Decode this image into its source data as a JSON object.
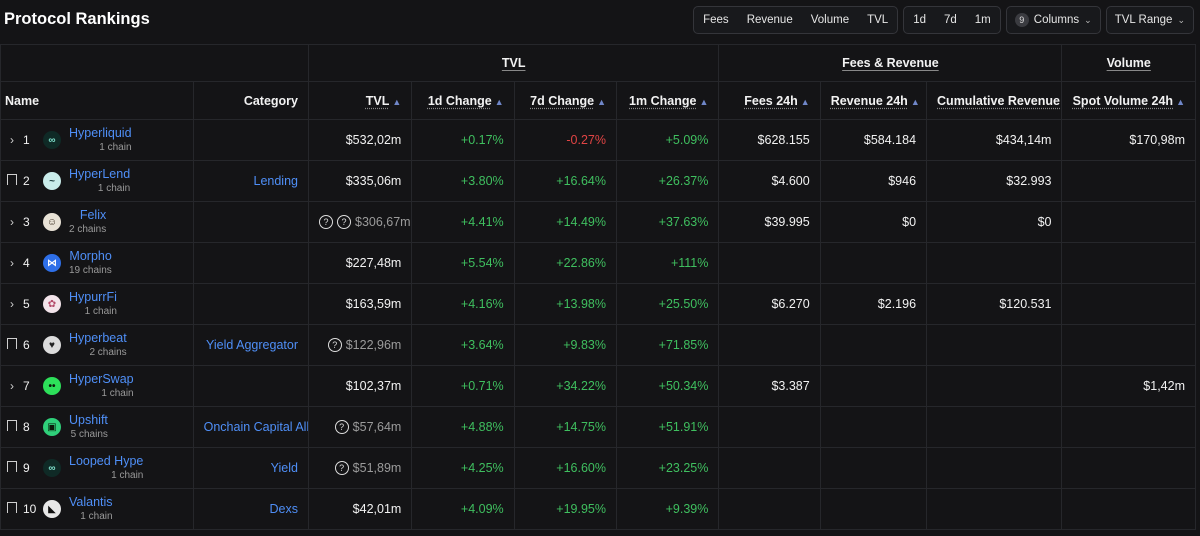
{
  "title": "Protocol Rankings",
  "metric_filters": [
    "Fees",
    "Revenue",
    "Volume",
    "TVL"
  ],
  "period_filters": [
    "1d",
    "7d",
    "1m"
  ],
  "columns_button": {
    "count": "9",
    "label": "Columns"
  },
  "range_button": {
    "label": "TVL Range"
  },
  "groups": {
    "tvl": "TVL",
    "fees": "Fees & Revenue",
    "volume": "Volume"
  },
  "headers": {
    "name": "Name",
    "category": "Category",
    "tvl": "TVL",
    "change_1d": "1d Change",
    "change_7d": "7d Change",
    "change_1m": "1m Change",
    "fees_24h": "Fees 24h",
    "revenue_24h": "Revenue 24h",
    "cum_revenue": "Cumulative Revenue",
    "spot_volume": "Spot Volume 24h"
  },
  "rows": [
    {
      "rank": "1",
      "control": "expand",
      "name": "Hyperliquid",
      "chains": "1 chain",
      "category": "",
      "tvl_icons": 0,
      "tvl": "$532,02m",
      "d1": "+0.17%",
      "d1_neg": false,
      "d7": "-0.27%",
      "d7_neg": true,
      "m1": "+5.09%",
      "fees": "$628.155",
      "revenue": "$584.184",
      "cum": "$434,14m",
      "volume": "$170,98m",
      "logo_bg": "#0f2a26",
      "logo_fg": "#7fe0cc",
      "logo_glyph": "∞"
    },
    {
      "rank": "2",
      "control": "bookmark",
      "name": "HyperLend",
      "chains": "1 chain",
      "category": "Lending",
      "tvl_icons": 0,
      "tvl": "$335,06m",
      "d1": "+3.80%",
      "d1_neg": false,
      "d7": "+16.64%",
      "d7_neg": false,
      "m1": "+26.37%",
      "fees": "$4.600",
      "revenue": "$946",
      "cum": "$32.993",
      "volume": "",
      "logo_bg": "#c9ecea",
      "logo_fg": "#1a3a3a",
      "logo_glyph": "~"
    },
    {
      "rank": "3",
      "control": "expand",
      "name": "Felix",
      "chains": "2 chains",
      "category": "",
      "tvl_icons": 2,
      "tvl": "$306,67m",
      "d1": "+4.41%",
      "d1_neg": false,
      "d7": "+14.49%",
      "d7_neg": false,
      "m1": "+37.63%",
      "fees": "$39.995",
      "revenue": "$0",
      "cum": "$0",
      "volume": "",
      "logo_bg": "#e8e2d6",
      "logo_fg": "#3a2e20",
      "logo_glyph": "☺"
    },
    {
      "rank": "4",
      "control": "expand",
      "name": "Morpho",
      "chains": "19 chains",
      "category": "",
      "tvl_icons": 0,
      "tvl": "$227,48m",
      "d1": "+5.54%",
      "d1_neg": false,
      "d7": "+22.86%",
      "d7_neg": false,
      "m1": "+111%",
      "fees": "",
      "revenue": "",
      "cum": "",
      "volume": "",
      "logo_bg": "#2e6fe8",
      "logo_fg": "#ffffff",
      "logo_glyph": "⋈"
    },
    {
      "rank": "5",
      "control": "expand",
      "name": "HypurrFi",
      "chains": "1 chain",
      "category": "",
      "tvl_icons": 0,
      "tvl": "$163,59m",
      "d1": "+4.16%",
      "d1_neg": false,
      "d7": "+13.98%",
      "d7_neg": false,
      "m1": "+25.50%",
      "fees": "$6.270",
      "revenue": "$2.196",
      "cum": "$120.531",
      "volume": "",
      "logo_bg": "#f3e4ea",
      "logo_fg": "#b44a6a",
      "logo_glyph": "✿"
    },
    {
      "rank": "6",
      "control": "bookmark",
      "name": "Hyperbeat",
      "chains": "2 chains",
      "category": "Yield Aggregator",
      "tvl_icons": 1,
      "tvl": "$122,96m",
      "d1": "+3.64%",
      "d1_neg": false,
      "d7": "+9.83%",
      "d7_neg": false,
      "m1": "+71.85%",
      "fees": "",
      "revenue": "",
      "cum": "",
      "volume": "",
      "logo_bg": "#dcdcdc",
      "logo_fg": "#222222",
      "logo_glyph": "♥"
    },
    {
      "rank": "7",
      "control": "expand",
      "name": "HyperSwap",
      "chains": "1 chain",
      "category": "",
      "tvl_icons": 0,
      "tvl": "$102,37m",
      "d1": "+0.71%",
      "d1_neg": false,
      "d7": "+34.22%",
      "d7_neg": false,
      "m1": "+50.34%",
      "fees": "$3.387",
      "revenue": "",
      "cum": "",
      "volume": "$1,42m",
      "logo_bg": "#2de05a",
      "logo_fg": "#0a1a0a",
      "logo_glyph": "••"
    },
    {
      "rank": "8",
      "control": "bookmark",
      "name": "Upshift",
      "chains": "5 chains",
      "category": "Onchain Capital Allocator",
      "tvl_icons": 1,
      "tvl": "$57,64m",
      "d1": "+4.88%",
      "d1_neg": false,
      "d7": "+14.75%",
      "d7_neg": false,
      "m1": "+51.91%",
      "fees": "",
      "revenue": "",
      "cum": "",
      "volume": "",
      "logo_bg": "#2fd07a",
      "logo_fg": "#0a1a0a",
      "logo_glyph": "▣"
    },
    {
      "rank": "9",
      "control": "bookmark",
      "name": "Looped Hype",
      "chains": "1 chain",
      "category": "Yield",
      "tvl_icons": 1,
      "tvl": "$51,89m",
      "d1": "+4.25%",
      "d1_neg": false,
      "d7": "+16.60%",
      "d7_neg": false,
      "m1": "+23.25%",
      "fees": "",
      "revenue": "",
      "cum": "",
      "volume": "",
      "logo_bg": "#0f2a26",
      "logo_fg": "#7fe0cc",
      "logo_glyph": "∞"
    },
    {
      "rank": "10",
      "control": "bookmark",
      "name": "Valantis",
      "chains": "1 chain",
      "category": "Dexs",
      "tvl_icons": 0,
      "tvl": "$42,01m",
      "d1": "+4.09%",
      "d1_neg": false,
      "d7": "+19.95%",
      "d7_neg": false,
      "m1": "+9.39%",
      "fees": "",
      "revenue": "",
      "cum": "",
      "volume": "",
      "logo_bg": "#e8e8e8",
      "logo_fg": "#111111",
      "logo_glyph": "◣"
    }
  ]
}
